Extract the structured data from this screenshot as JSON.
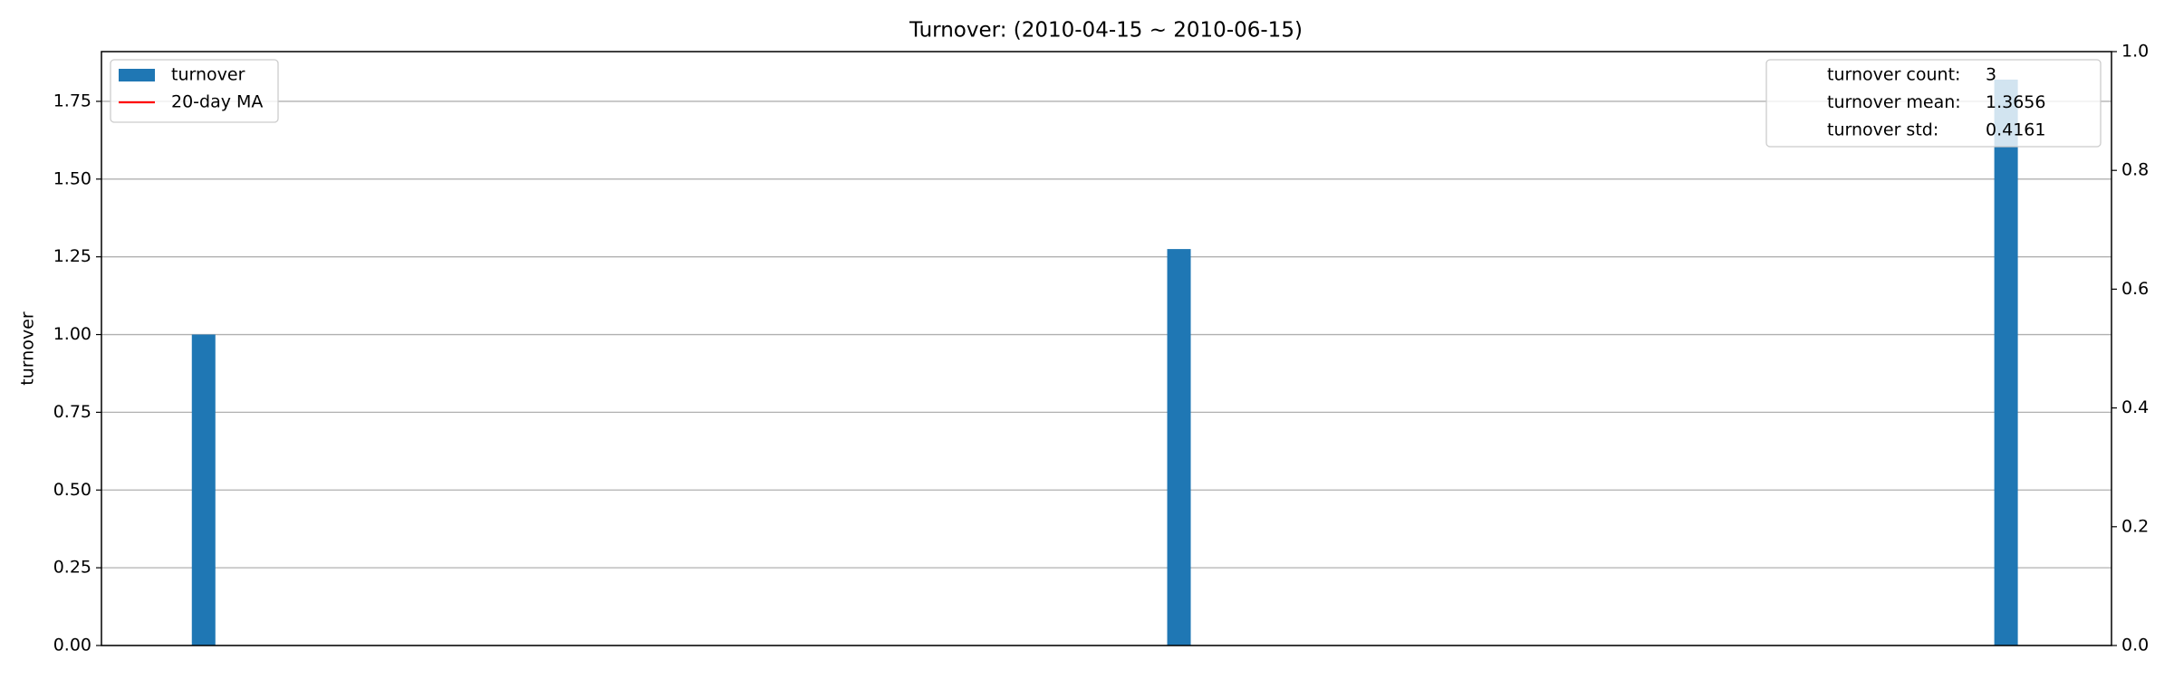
{
  "chart_data": {
    "type": "bar",
    "title": "Turnover: (2010-04-15 ~ 2010-06-15)",
    "y_label": "turnover",
    "x": [
      3.1,
      32.7,
      57.8
    ],
    "xlim": [
      0,
      61
    ],
    "series": [
      {
        "name": "turnover",
        "color": "#1f77b4",
        "values": [
          1.0,
          1.275,
          1.82
        ]
      },
      {
        "name": "20-day MA",
        "color": "#ff0000",
        "values": [
          null,
          null,
          null
        ]
      }
    ],
    "ylim": [
      0,
      1.91
    ],
    "yticks": [
      {
        "value": 0,
        "label": "0.00"
      },
      {
        "value": 0.25,
        "label": "0.25"
      },
      {
        "value": 0.5,
        "label": "0.50"
      },
      {
        "value": 0.75,
        "label": "0.75"
      },
      {
        "value": 1,
        "label": "1.00"
      },
      {
        "value": 1.25,
        "label": "1.25"
      },
      {
        "value": 1.5,
        "label": "1.50"
      },
      {
        "value": 1.75,
        "label": "1.75"
      }
    ],
    "y2lim": [
      0,
      1
    ],
    "y2ticks": [
      {
        "value": 0,
        "label": "0.0"
      },
      0.2,
      0.4,
      0.6,
      0.8,
      {
        "value": 1,
        "label": "1.0"
      }
    ],
    "grid": true,
    "legend": "upper left",
    "stats": [
      {
        "label": "turnover count:",
        "value": 3
      },
      {
        "label": "turnover mean:",
        "value": 1.3656
      },
      {
        "label": "turnover std:",
        "value": 0.4161
      }
    ]
  }
}
